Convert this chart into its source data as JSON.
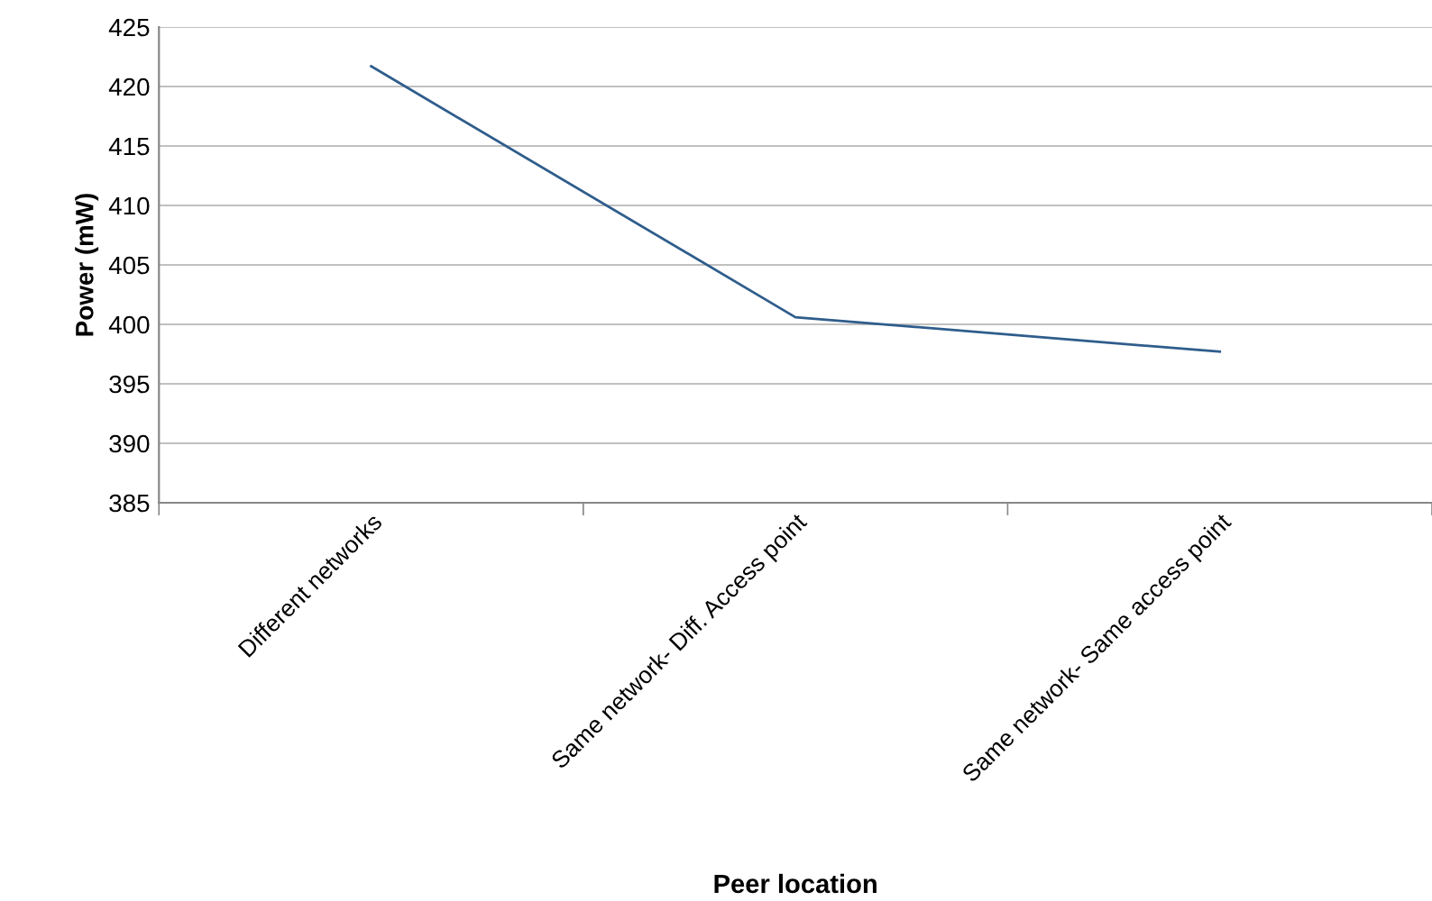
{
  "chart_data": {
    "type": "line",
    "xlabel": "Peer location",
    "ylabel": "Power (mW)",
    "categories": [
      "Different networks",
      "Same network- Diff. Access point",
      "Same network- Same access point"
    ],
    "series": [
      {
        "color": "#2f5d8c",
        "values": [
          421.7,
          400.6,
          397.7
        ]
      }
    ],
    "ylim": [
      385,
      425
    ],
    "yticks": [
      385,
      390,
      395,
      400,
      405,
      410,
      415,
      420,
      425
    ],
    "grid": "y",
    "marker": "none",
    "line_style": "solid",
    "legend": false
  }
}
